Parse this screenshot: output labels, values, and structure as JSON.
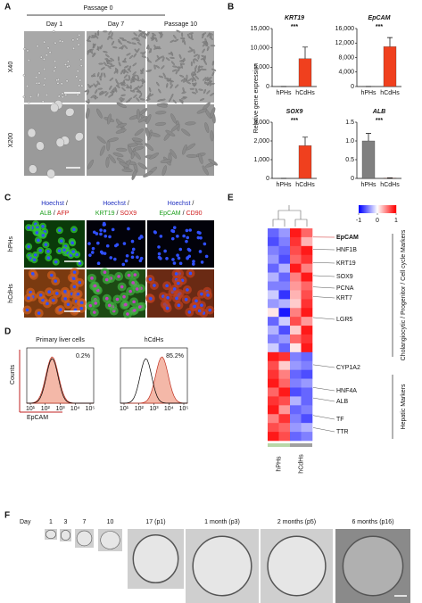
{
  "panels": [
    "A",
    "B",
    "C",
    "D",
    "E",
    "F"
  ],
  "panel_a": {
    "header": "Passage 0",
    "columns": [
      "Day 1",
      "Day 7",
      "Passage 10"
    ],
    "rows": [
      "X40",
      "X200"
    ]
  },
  "panel_b": {
    "ylabel": "Relative gene expression"
  },
  "chart_data": [
    {
      "type": "bar",
      "title": "KRT19",
      "categories": [
        "hPHs",
        "hCdHs"
      ],
      "values": [
        1,
        7200
      ],
      "errors": [
        0,
        3000
      ],
      "colors": [
        "#808080",
        "#f0401e"
      ],
      "ylim": [
        0,
        15000
      ],
      "yticks": [
        0,
        {
          "value": 5000,
          "label": "5,000"
        },
        {
          "value": 10000,
          "label": "10,000"
        },
        {
          "value": 15000,
          "label": "15,000"
        }
      ],
      "annotation": "***"
    },
    {
      "type": "bar",
      "title": "EpCAM",
      "categories": [
        "hPHs",
        "hCdHs"
      ],
      "values": [
        1,
        11000
      ],
      "errors": [
        0,
        2500
      ],
      "colors": [
        "#808080",
        "#f0401e"
      ],
      "ylim": [
        0,
        16000
      ],
      "yticks": [
        0,
        {
          "value": 4000,
          "label": "4,000"
        },
        {
          "value": 8000,
          "label": "8,000"
        },
        {
          "value": 12000,
          "label": "12,000"
        },
        {
          "value": 16000,
          "label": "16,000"
        }
      ],
      "annotation": "***"
    },
    {
      "type": "bar",
      "title": "SOX9",
      "categories": [
        "hPHs",
        "hCdHs"
      ],
      "values": [
        1,
        1750
      ],
      "errors": [
        0,
        450
      ],
      "colors": [
        "#808080",
        "#f0401e"
      ],
      "ylim": [
        0,
        3000
      ],
      "yticks": [
        0,
        {
          "value": 1000,
          "label": "1,000"
        },
        {
          "value": 2000,
          "label": "2,000"
        },
        {
          "value": 3000,
          "label": "3,000"
        }
      ],
      "annotation": "***"
    },
    {
      "type": "bar",
      "title": "ALB",
      "categories": [
        "hPHs",
        "hCdHs"
      ],
      "values": [
        1.0,
        0.01
      ],
      "errors": [
        0.2,
        0.005
      ],
      "colors": [
        "#808080",
        "#f0401e"
      ],
      "ylim": [
        0,
        1.5
      ],
      "yticks": [
        0,
        0.5,
        {
          "value": 1,
          "label": "1.0"
        },
        1.5
      ],
      "annotation": "***"
    }
  ],
  "panel_c": {
    "separator": "/",
    "columns": [
      {
        "stain1": "Hoechst",
        "stain2": "ALB",
        "stain3": "AFP"
      },
      {
        "stain1": "Hoechst",
        "stain2": "KRT19",
        "stain3": "SOX9"
      },
      {
        "stain1": "Hoechst",
        "stain2": "EpCAM",
        "stain3": "CD90"
      }
    ],
    "rows": [
      "hPHs",
      "hCdHs"
    ]
  },
  "panel_d": {
    "titles": [
      "Primary liver cells",
      "hCdHs"
    ],
    "percentages": [
      "0.2%",
      "85.2%"
    ],
    "ylabel": "Counts",
    "xlabel": "EpCAM",
    "xticks": [
      "10¹",
      "10²",
      "10³",
      "10⁴",
      "10⁵"
    ]
  },
  "heatmap": {
    "columns": [
      "hPHs",
      "hCdHs"
    ],
    "colorbar_ticks": [
      -1,
      0,
      1
    ],
    "genes": [
      "EpCAM",
      "HNF1B",
      "KRT19",
      "SOX9",
      "PCNA",
      "KRT7",
      "LGR5",
      "CYP1A2",
      "HNF4A",
      "ALB",
      "TF",
      "TTR"
    ],
    "groups": [
      "Cholangiocytic / Progenitor / Cell cycle Markers",
      "Hepatic Markers"
    ],
    "values": [
      [
        -0.6,
        -0.4,
        0.9,
        0.6
      ],
      [
        -0.7,
        -0.5,
        0.8,
        0.3
      ],
      [
        -0.5,
        -0.6,
        0.7,
        0.9
      ],
      [
        -0.4,
        -0.7,
        0.6,
        0.8
      ],
      [
        -0.6,
        -0.3,
        0.9,
        0.5
      ],
      [
        -0.3,
        -0.6,
        0.5,
        0.9
      ],
      [
        -0.5,
        -0.5,
        0.4,
        0.6
      ],
      [
        -0.2,
        -0.8,
        0.3,
        0.7
      ],
      [
        -0.4,
        -0.3,
        0.2,
        0.8
      ],
      [
        0.1,
        -0.9,
        0.5,
        0.9
      ],
      [
        -0.6,
        -0.2,
        0.7,
        0.4
      ],
      [
        -0.3,
        -0.7,
        0.2,
        0.9
      ],
      [
        -0.5,
        -0.4,
        0.6,
        0.8
      ],
      [
        -0.2,
        -0.6,
        0.1,
        0.9
      ],
      [
        0.9,
        0.8,
        -0.5,
        -0.6
      ],
      [
        0.7,
        0.2,
        -0.4,
        -0.5
      ],
      [
        0.8,
        0.5,
        -0.6,
        -0.7
      ],
      [
        0.9,
        0.6,
        -0.5,
        -0.4
      ],
      [
        0.6,
        0.9,
        -0.7,
        -0.6
      ],
      [
        0.8,
        0.7,
        -0.3,
        -0.6
      ],
      [
        0.9,
        0.4,
        -0.6,
        -0.5
      ],
      [
        0.5,
        0.8,
        -0.5,
        -0.7
      ],
      [
        0.7,
        0.6,
        -0.4,
        -0.3
      ],
      [
        0.9,
        0.7,
        -0.6,
        -0.5
      ]
    ]
  },
  "panel_f": {
    "day_label": "Day",
    "timepoints": [
      "1",
      "3",
      "7",
      "10",
      "17 (p1)",
      "1 month (p3)",
      "2 months (p5)",
      "6 months (p16)"
    ]
  }
}
